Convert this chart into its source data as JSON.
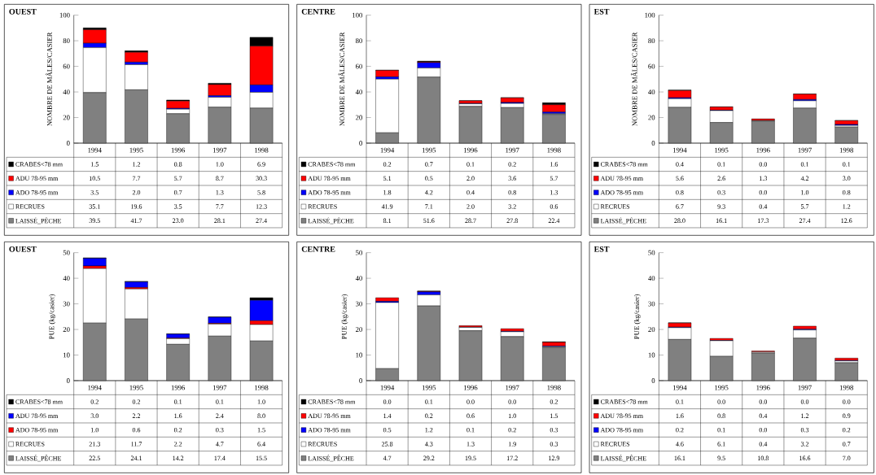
{
  "chart_data": [
    {
      "type": "bar",
      "stacked": true,
      "title": "OUEST",
      "ylabel": "NOMBRE DE MÂLES/CASIER",
      "categories": [
        "1994",
        "1995",
        "1996",
        "1997",
        "1998"
      ],
      "ylim": [
        0,
        100
      ],
      "yticks": [
        0,
        20,
        40,
        60,
        80,
        100
      ],
      "legend": "bottom",
      "series": [
        {
          "name": "LAISSÉ_PÊCHE",
          "color": "#808080",
          "values": [
            39.5,
            41.7,
            23.0,
            28.1,
            27.4
          ],
          "value_labels": [
            "39.5",
            "41.7",
            "23.0",
            "28.1",
            "27.4"
          ]
        },
        {
          "name": "RECRUES",
          "color": "#ffffff",
          "values": [
            35.1,
            19.6,
            3.5,
            7.7,
            12.3
          ],
          "value_labels": [
            "35.1",
            "19.6",
            "3.5",
            "7.7",
            "12.3"
          ]
        },
        {
          "name": "ADO 78-95 mm",
          "color": "#0000ff",
          "values": [
            3.5,
            2.0,
            0.7,
            1.3,
            5.8
          ],
          "value_labels": [
            "3.5",
            "2.0",
            "0.7",
            "1.3",
            "5.8"
          ]
        },
        {
          "name": "ADU 78-95 mm",
          "color": "#ff0000",
          "values": [
            10.5,
            7.7,
            5.7,
            8.7,
            30.3
          ],
          "value_labels": [
            "10.5",
            "7.7",
            "5.7",
            "8.7",
            "30.3"
          ]
        },
        {
          "name": "CRABES<78 mm",
          "color": "#000000",
          "values": [
            1.5,
            1.2,
            0.8,
            1.0,
            6.9
          ],
          "value_labels": [
            "1.5",
            "1.2",
            "0.8",
            "1.0",
            "6.9"
          ]
        }
      ]
    },
    {
      "type": "bar",
      "stacked": true,
      "title": "CENTRE",
      "ylabel": "NOMBRE DE MÂLES/CASIER",
      "categories": [
        "1994",
        "1995",
        "1996",
        "1997",
        "1998"
      ],
      "ylim": [
        0,
        100
      ],
      "yticks": [
        0,
        20,
        40,
        60,
        80,
        100
      ],
      "legend": "bottom",
      "series": [
        {
          "name": "LAISSÉ_PÊCHE",
          "color": "#808080",
          "values": [
            8.1,
            51.6,
            28.7,
            27.8,
            22.4
          ],
          "value_labels": [
            "8.1",
            "51.6",
            "28.7",
            "27.8",
            "22.4"
          ]
        },
        {
          "name": "RECRUES",
          "color": "#ffffff",
          "values": [
            41.9,
            7.1,
            2.0,
            3.2,
            0.6
          ],
          "value_labels": [
            "41.9",
            "7.1",
            "2.0",
            "3.2",
            "0.6"
          ]
        },
        {
          "name": "ADO 78-95 mm",
          "color": "#0000ff",
          "values": [
            1.8,
            4.2,
            0.4,
            0.8,
            1.3
          ],
          "value_labels": [
            "1.8",
            "4.2",
            "0.4",
            "0.8",
            "1.3"
          ]
        },
        {
          "name": "ADU 78-95 mm",
          "color": "#ff0000",
          "values": [
            5.1,
            0.5,
            2.0,
            3.6,
            5.7
          ],
          "value_labels": [
            "5.1",
            "0.5",
            "2.0",
            "3.6",
            "5.7"
          ]
        },
        {
          "name": "CRABES<78 mm",
          "color": "#000000",
          "values": [
            0.2,
            0.7,
            0.1,
            0.2,
            1.6
          ],
          "value_labels": [
            "0.2",
            "0.7",
            "0.1",
            "0.2",
            "1.6"
          ]
        }
      ]
    },
    {
      "type": "bar",
      "stacked": true,
      "title": "EST",
      "ylabel": "NOMBRE DE MÂLES/CASIER",
      "categories": [
        "1994",
        "1995",
        "1996",
        "1997",
        "1998"
      ],
      "ylim": [
        0,
        100
      ],
      "yticks": [
        0,
        20,
        40,
        60,
        80,
        100
      ],
      "legend": "bottom",
      "series": [
        {
          "name": "LAISSÉ_PÊCHE",
          "color": "#808080",
          "values": [
            28.0,
            16.1,
            17.3,
            27.4,
            12.6
          ],
          "value_labels": [
            "28.0",
            "16.1",
            "17.3",
            "27.4",
            "12.6"
          ]
        },
        {
          "name": "RECRUES",
          "color": "#ffffff",
          "values": [
            6.7,
            9.3,
            0.4,
            5.7,
            1.2
          ],
          "value_labels": [
            "6.7",
            "9.3",
            "0.4",
            "5.7",
            "1.2"
          ]
        },
        {
          "name": "ADO 78-95 mm",
          "color": "#0000ff",
          "values": [
            0.8,
            0.3,
            0.0,
            1.0,
            0.8
          ],
          "value_labels": [
            "0.8",
            "0.3",
            "0.0",
            "1.0",
            "0.8"
          ]
        },
        {
          "name": "ADU 78-95 mm",
          "color": "#ff0000",
          "values": [
            5.6,
            2.6,
            1.3,
            4.2,
            3.0
          ],
          "value_labels": [
            "5.6",
            "2.6",
            "1.3",
            "4.2",
            "3.0"
          ]
        },
        {
          "name": "CRABES<78 mm",
          "color": "#000000",
          "values": [
            0.4,
            0.1,
            0.0,
            0.1,
            0.1
          ],
          "value_labels": [
            "0.4",
            "0.1",
            "0.0",
            "0.1",
            "0.1"
          ]
        }
      ]
    },
    {
      "type": "bar",
      "stacked": true,
      "title": "OUEST",
      "ylabel": "PUE (kg/casier)",
      "categories": [
        "1994",
        "1995",
        "1996",
        "1997",
        "1998"
      ],
      "ylim": [
        0,
        50
      ],
      "yticks": [
        0,
        10,
        20,
        30,
        40,
        50
      ],
      "legend": "bottom",
      "series": [
        {
          "name": "LAISSÉ_PÊCHE",
          "color": "#808080",
          "values": [
            22.5,
            24.1,
            14.2,
            17.4,
            15.5
          ],
          "value_labels": [
            "22.5",
            "24.1",
            "14.2",
            "17.4",
            "15.5"
          ]
        },
        {
          "name": "RECRUES",
          "color": "#ffffff",
          "values": [
            21.3,
            11.7,
            2.2,
            4.7,
            6.4
          ],
          "value_labels": [
            "21.3",
            "11.7",
            "2.2",
            "4.7",
            "6.4"
          ]
        },
        {
          "name": "ADO 78-95 mm",
          "color": "#ff0000",
          "values": [
            1.0,
            0.6,
            0.2,
            0.3,
            1.5
          ],
          "value_labels": [
            "1.0",
            "0.6",
            "0.2",
            "0.3",
            "1.5"
          ]
        },
        {
          "name": "ADU 78-95 mm",
          "color": "#0000ff",
          "values": [
            3.0,
            2.2,
            1.6,
            2.4,
            8.0
          ],
          "value_labels": [
            "3.0",
            "2.2",
            "1.6",
            "2.4",
            "8.0"
          ]
        },
        {
          "name": "CRABES<78 mm",
          "color": "#000000",
          "values": [
            0.2,
            0.2,
            0.1,
            0.1,
            1.0
          ],
          "value_labels": [
            "0.2",
            "0.2",
            "0.1",
            "0.1",
            "1.0"
          ]
        }
      ]
    },
    {
      "type": "bar",
      "stacked": true,
      "title": "CENTRE",
      "ylabel": "PUE (kg/casier)",
      "categories": [
        "1994",
        "1995",
        "1996",
        "1997",
        "1998"
      ],
      "ylim": [
        0,
        50
      ],
      "yticks": [
        0,
        10,
        20,
        30,
        40,
        50
      ],
      "legend": "bottom",
      "series": [
        {
          "name": "LAISSÉ_PÊCHE",
          "color": "#808080",
          "values": [
            4.7,
            29.2,
            19.5,
            17.2,
            12.9
          ],
          "value_labels": [
            "4.7",
            "29.2",
            "19.5",
            "17.2",
            "12.9"
          ]
        },
        {
          "name": "RECRUES",
          "color": "#ffffff",
          "values": [
            25.8,
            4.3,
            1.3,
            1.9,
            0.3
          ],
          "value_labels": [
            "25.8",
            "4.3",
            "1.3",
            "1.9",
            "0.3"
          ]
        },
        {
          "name": "ADO 78-95 mm",
          "color": "#0000ff",
          "values": [
            0.5,
            1.2,
            0.1,
            0.2,
            0.3
          ],
          "value_labels": [
            "0.5",
            "1.2",
            "0.1",
            "0.2",
            "0.3"
          ]
        },
        {
          "name": "ADU 78-95 mm",
          "color": "#ff0000",
          "values": [
            1.4,
            0.2,
            0.6,
            1.0,
            1.5
          ],
          "value_labels": [
            "1.4",
            "0.2",
            "0.6",
            "1.0",
            "1.5"
          ]
        },
        {
          "name": "CRABES<78 mm",
          "color": "#000000",
          "values": [
            0.0,
            0.1,
            0.0,
            0.0,
            0.2
          ],
          "value_labels": [
            "0.0",
            "0.1",
            "0.0",
            "0.0",
            "0.2"
          ]
        }
      ]
    },
    {
      "type": "bar",
      "stacked": true,
      "title": "EST",
      "ylabel": "PUE (kg/casier)",
      "categories": [
        "1994",
        "1995",
        "1996",
        "1997",
        "1998"
      ],
      "ylim": [
        0,
        50
      ],
      "yticks": [
        0,
        10,
        20,
        30,
        40,
        50
      ],
      "legend": "bottom",
      "series": [
        {
          "name": "LAISSÉ_PÊCHE",
          "color": "#808080",
          "values": [
            16.1,
            9.5,
            10.8,
            16.6,
            7.0
          ],
          "value_labels": [
            "16.1",
            "9.5",
            "10.8",
            "16.6",
            "7.0"
          ]
        },
        {
          "name": "RECRUES",
          "color": "#ffffff",
          "values": [
            4.6,
            6.1,
            0.4,
            3.2,
            0.7
          ],
          "value_labels": [
            "4.6",
            "6.1",
            "0.4",
            "3.2",
            "0.7"
          ]
        },
        {
          "name": "ADO 78-95 mm",
          "color": "#0000ff",
          "values": [
            0.2,
            0.1,
            0.0,
            0.3,
            0.2
          ],
          "value_labels": [
            "0.2",
            "0.1",
            "0.0",
            "0.3",
            "0.2"
          ]
        },
        {
          "name": "ADU 78-95 mm",
          "color": "#ff0000",
          "values": [
            1.6,
            0.8,
            0.4,
            1.2,
            0.9
          ],
          "value_labels": [
            "1.6",
            "0.8",
            "0.4",
            "1.2",
            "0.9"
          ]
        },
        {
          "name": "CRABES<78 mm",
          "color": "#000000",
          "values": [
            0.1,
            0.0,
            0.0,
            0.0,
            0.0
          ],
          "value_labels": [
            "0.1",
            "0.0",
            "0.0",
            "0.0",
            "0.0"
          ]
        }
      ]
    }
  ]
}
